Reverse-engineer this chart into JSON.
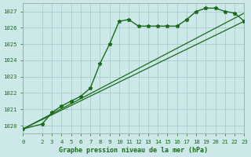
{
  "title": "Graphe pression niveau de la mer (hPa)",
  "bg_color": "#cce8e8",
  "grid_color": "#aacccc",
  "line_color": "#1a6b1a",
  "xlim": [
    0,
    23
  ],
  "ylim": [
    1019.5,
    1027.5
  ],
  "yticks": [
    1020,
    1021,
    1022,
    1023,
    1024,
    1025,
    1026,
    1027
  ],
  "xticks": [
    0,
    2,
    3,
    4,
    5,
    6,
    7,
    8,
    9,
    10,
    11,
    12,
    13,
    14,
    15,
    16,
    17,
    18,
    19,
    20,
    21,
    22,
    23
  ],
  "series1_x": [
    0,
    2,
    3,
    4,
    5,
    6,
    7,
    8,
    9,
    10,
    11,
    12,
    13,
    14,
    15,
    16,
    17,
    18,
    19,
    20,
    21,
    22,
    23
  ],
  "series1_y": [
    1019.8,
    1020.1,
    1020.8,
    1021.2,
    1021.5,
    1021.8,
    1022.3,
    1023.8,
    1025.0,
    1026.4,
    1026.5,
    1026.1,
    1026.1,
    1026.1,
    1026.1,
    1026.1,
    1026.5,
    1027.0,
    1027.2,
    1027.2,
    1027.0,
    1026.9,
    1026.4
  ],
  "series2_x": [
    0,
    23
  ],
  "series2_y": [
    1019.8,
    1026.4
  ],
  "series3_x": [
    0,
    23
  ],
  "series3_y": [
    1019.8,
    1026.9
  ]
}
